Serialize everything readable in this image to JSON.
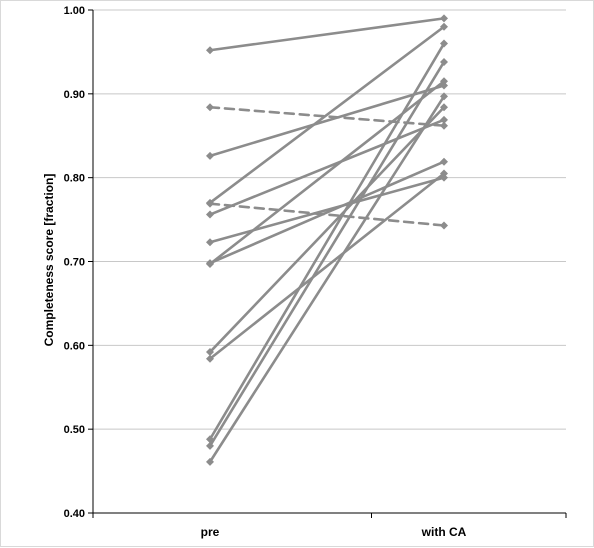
{
  "chart_data": {
    "type": "line",
    "categories": [
      "pre",
      "with CA"
    ],
    "ylabel": "Completeness score [fraction]",
    "xlabel": "",
    "title": "",
    "ylim": [
      0.4,
      1.0
    ],
    "yticks": [
      "0.40",
      "0.50",
      "0.60",
      "0.70",
      "0.80",
      "0.90",
      "1.00"
    ],
    "grid": "horizontal",
    "line_color": "#8c8c8c",
    "marker_color": "#8c8c8c",
    "series": [
      {
        "values": [
          0.952,
          0.99
        ],
        "style": "solid"
      },
      {
        "values": [
          0.884,
          0.862
        ],
        "style": "dashed"
      },
      {
        "values": [
          0.826,
          0.91
        ],
        "style": "solid"
      },
      {
        "values": [
          0.77,
          0.98
        ],
        "style": "solid"
      },
      {
        "values": [
          0.769,
          0.743
        ],
        "style": "dashed"
      },
      {
        "values": [
          0.756,
          0.869
        ],
        "style": "solid"
      },
      {
        "values": [
          0.723,
          0.8
        ],
        "style": "solid"
      },
      {
        "values": [
          0.698,
          0.819
        ],
        "style": "solid"
      },
      {
        "values": [
          0.697,
          0.915
        ],
        "style": "solid"
      },
      {
        "values": [
          0.592,
          0.884
        ],
        "style": "solid"
      },
      {
        "values": [
          0.584,
          0.805
        ],
        "style": "solid"
      },
      {
        "values": [
          0.488,
          0.96
        ],
        "style": "solid"
      },
      {
        "values": [
          0.48,
          0.938
        ],
        "style": "solid"
      },
      {
        "values": [
          0.461,
          0.897
        ],
        "style": "solid"
      }
    ]
  }
}
